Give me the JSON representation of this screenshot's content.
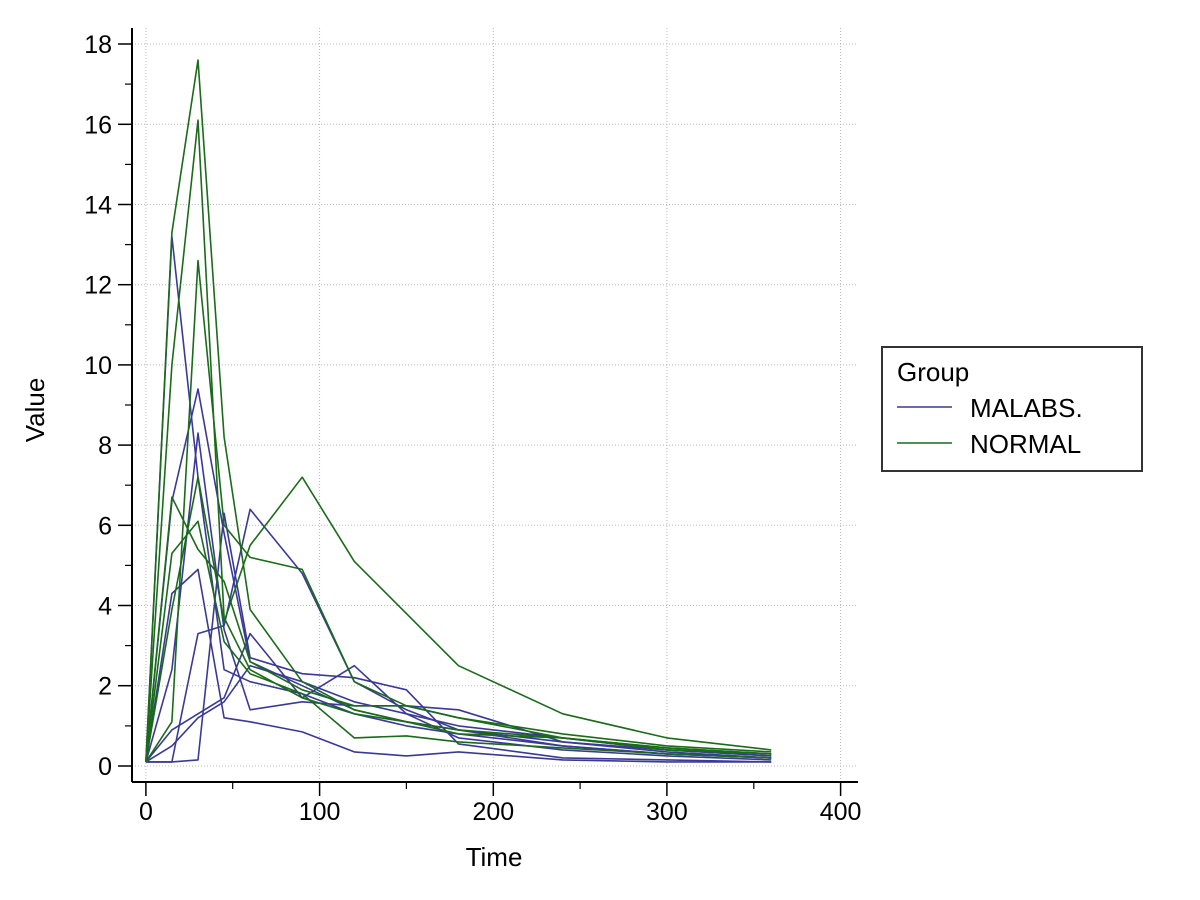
{
  "chart_data": {
    "type": "line",
    "title": "",
    "xlabel": "Time",
    "ylabel": "Value",
    "xlim": [
      -8,
      410
    ],
    "ylim": [
      -0.4,
      18.4
    ],
    "xticks": [
      0,
      100,
      200,
      300,
      400
    ],
    "yticks": [
      0,
      2,
      4,
      6,
      8,
      10,
      12,
      14,
      16,
      18
    ],
    "grid": true,
    "legend": {
      "title": "Group",
      "position": "right",
      "entries": [
        {
          "label": "MALABS.",
          "color": "#3a3a96"
        },
        {
          "label": "NORMAL",
          "color": "#1a6b1a"
        }
      ]
    },
    "x": [
      0,
      15,
      30,
      45,
      60,
      90,
      120,
      150,
      180,
      240,
      300,
      360
    ],
    "series": [
      {
        "group": "MALABS.",
        "color": "#3a3a96",
        "values": [
          0.1,
          13.2,
          7.2,
          2.4,
          2.1,
          1.8,
          1.3,
          1.0,
          0.8,
          0.5,
          0.3,
          0.2
        ]
      },
      {
        "group": "MALABS.",
        "color": "#3a3a96",
        "values": [
          0.1,
          6.6,
          9.4,
          5.8,
          2.6,
          2.0,
          1.4,
          1.1,
          0.9,
          0.6,
          0.35,
          0.2
        ]
      },
      {
        "group": "MALABS.",
        "color": "#3a3a96",
        "values": [
          0.1,
          2.4,
          8.3,
          3.4,
          1.4,
          1.6,
          1.5,
          1.5,
          1.4,
          0.6,
          0.4,
          0.25
        ]
      },
      {
        "group": "MALABS.",
        "color": "#3a3a96",
        "values": [
          0.1,
          4.3,
          4.9,
          1.2,
          1.1,
          0.85,
          0.35,
          0.25,
          0.35,
          0.15,
          0.1,
          0.1
        ]
      },
      {
        "group": "MALABS.",
        "color": "#3a3a96",
        "values": [
          0.1,
          0.1,
          3.3,
          3.5,
          6.4,
          4.8,
          2.1,
          1.4,
          0.9,
          0.5,
          0.3,
          0.2
        ]
      },
      {
        "group": "MALABS.",
        "color": "#3a3a96",
        "values": [
          0.1,
          0.9,
          1.3,
          1.7,
          3.3,
          1.7,
          2.5,
          1.3,
          0.7,
          0.4,
          0.25,
          0.15
        ]
      },
      {
        "group": "MALABS.",
        "color": "#3a3a96",
        "values": [
          0.1,
          0.1,
          0.15,
          6.3,
          2.7,
          2.3,
          2.2,
          1.9,
          0.55,
          0.2,
          0.15,
          0.1
        ]
      },
      {
        "group": "MALABS.",
        "color": "#3a3a96",
        "values": [
          0.1,
          0.5,
          1.2,
          1.6,
          2.5,
          2.1,
          1.6,
          1.3,
          1.0,
          0.7,
          0.4,
          0.25
        ]
      },
      {
        "group": "NORMAL",
        "color": "#1a6b1a",
        "values": [
          0.1,
          13.3,
          17.6,
          8.2,
          3.9,
          2.1,
          1.4,
          1.1,
          0.9,
          0.7,
          0.45,
          0.3
        ]
      },
      {
        "group": "NORMAL",
        "color": "#1a6b1a",
        "values": [
          0.1,
          10.0,
          16.1,
          3.7,
          2.4,
          1.7,
          1.3,
          1.1,
          0.8,
          0.7,
          0.4,
          0.3
        ]
      },
      {
        "group": "NORMAL",
        "color": "#1a6b1a",
        "values": [
          0.1,
          6.7,
          5.4,
          4.6,
          2.6,
          1.9,
          1.5,
          1.5,
          1.2,
          0.8,
          0.5,
          0.35
        ]
      },
      {
        "group": "NORMAL",
        "color": "#1a6b1a",
        "values": [
          0.1,
          3.9,
          7.2,
          3.6,
          5.5,
          7.2,
          5.1,
          3.8,
          2.5,
          1.3,
          0.7,
          0.4
        ]
      },
      {
        "group": "NORMAL",
        "color": "#1a6b1a",
        "values": [
          0.1,
          1.1,
          12.6,
          6.0,
          5.2,
          4.9,
          2.1,
          1.5,
          1.2,
          0.7,
          0.45,
          0.3
        ]
      },
      {
        "group": "NORMAL",
        "color": "#1a6b1a",
        "values": [
          0.1,
          5.3,
          6.1,
          3.1,
          2.3,
          1.8,
          0.7,
          0.75,
          0.6,
          0.45,
          0.3,
          0.2
        ]
      }
    ]
  }
}
